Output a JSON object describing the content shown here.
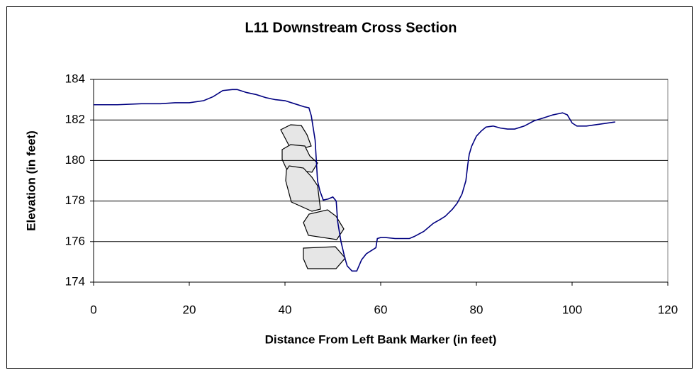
{
  "chart_data": {
    "type": "line",
    "title": "L11 Downstream Cross Section",
    "x_label": "Distance From Left Bank Marker (in feet)",
    "y_label": "Elevation (in feet)",
    "x": [
      0,
      5,
      10,
      14,
      17,
      20,
      23,
      25,
      27,
      29,
      30,
      32,
      34,
      36,
      38,
      40,
      42,
      44,
      45,
      45.5,
      46.3,
      46.8,
      47.3,
      48,
      49,
      50,
      50.7,
      51,
      51.7,
      52.5,
      53,
      54,
      55,
      56,
      57,
      58,
      59,
      59.3,
      60,
      61,
      63,
      66,
      67,
      69,
      71,
      72.5,
      73.5,
      75,
      76,
      77,
      77.8,
      78.2,
      78.5,
      79,
      80,
      81,
      82,
      83.5,
      85,
      86.5,
      88,
      90,
      92,
      94,
      96,
      97,
      98,
      99,
      100,
      101,
      103,
      106,
      109
    ],
    "values": [
      182.75,
      182.75,
      182.8,
      182.8,
      182.85,
      182.85,
      182.95,
      183.15,
      183.45,
      183.5,
      183.5,
      183.35,
      183.25,
      183.1,
      183.0,
      182.95,
      182.8,
      182.65,
      182.6,
      182.2,
      181,
      179,
      178.5,
      178.05,
      178.1,
      178.2,
      178,
      177,
      176,
      175.2,
      174.8,
      174.55,
      174.55,
      175.1,
      175.4,
      175.55,
      175.7,
      176.15,
      176.2,
      176.2,
      176.15,
      176.15,
      176.25,
      176.5,
      176.9,
      177.1,
      177.25,
      177.6,
      177.9,
      178.35,
      179,
      179.8,
      180.3,
      180.7,
      181.2,
      181.45,
      181.65,
      181.7,
      181.6,
      181.55,
      181.55,
      181.7,
      181.95,
      182.1,
      182.25,
      182.3,
      182.35,
      182.25,
      181.85,
      181.7,
      181.7,
      181.8,
      181.9
    ],
    "color": "#000080",
    "xlim": [
      0,
      120
    ],
    "xticks": [
      0,
      20,
      40,
      60,
      80,
      100,
      120
    ],
    "ylim": [
      174,
      184
    ],
    "yticks": [
      174,
      176,
      178,
      180,
      182,
      184
    ],
    "grid": true
  }
}
